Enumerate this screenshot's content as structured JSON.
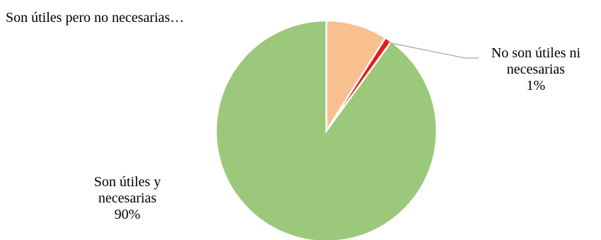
{
  "chart_data": {
    "type": "pie",
    "title": "",
    "series": [
      {
        "values": [
          9,
          1,
          90
        ],
        "categories": [
          "Son útiles pero no necesarias",
          "No son útiles ni necesarias",
          "Son útiles y necesarias"
        ]
      }
    ],
    "slices": [
      {
        "category": "Son útiles pero no necesarias",
        "value": 9,
        "color": "#f9c08f",
        "label_line1": "Son útiles pero no necesarias…",
        "label_line2": "",
        "label_line3": ""
      },
      {
        "category": "No son útiles ni necesarias",
        "value": 1,
        "color": "#e31b1b",
        "label_line1": "No son útiles ni",
        "label_line2": "necesarias",
        "label_line3": "1%"
      },
      {
        "category": "Son útiles y necesarias",
        "value": 90,
        "color": "#9bc87b",
        "label_line1": "Son útiles y",
        "label_line2": "necesarias",
        "label_line3": "90%"
      }
    ],
    "legend": "none",
    "start_angle": "12 o'clock, clockwise"
  }
}
